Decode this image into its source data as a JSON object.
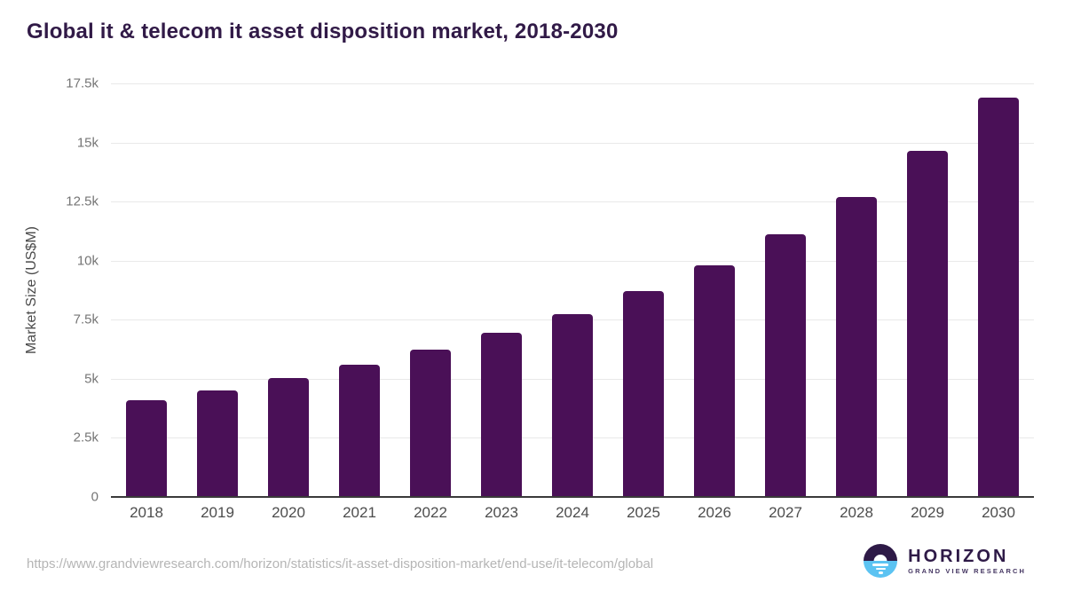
{
  "chart_data": {
    "type": "bar",
    "title": "Global it & telecom it asset disposition market, 2018-2030",
    "categories": [
      "2018",
      "2019",
      "2020",
      "2021",
      "2022",
      "2023",
      "2024",
      "2025",
      "2026",
      "2027",
      "2028",
      "2029",
      "2030"
    ],
    "values": [
      4100,
      4500,
      5050,
      5600,
      6250,
      6950,
      7750,
      8700,
      9800,
      11100,
      12700,
      14650,
      16900
    ],
    "xlabel": "",
    "ylabel": "Market Size (US$M)",
    "ylim": [
      0,
      17500
    ],
    "ytick_values": [
      0,
      2500,
      5000,
      7500,
      10000,
      12500,
      15000,
      17500
    ],
    "ytick_labels": [
      "0",
      "2.5k",
      "5k",
      "7.5k",
      "10k",
      "12.5k",
      "15k",
      "17.5k"
    ],
    "grid": true,
    "legend": "none",
    "bar_color": "#4a1057"
  },
  "colors": {
    "title": "#311a47",
    "bar": "#4a1057",
    "gridline": "#e9e9e9",
    "axis_line": "#3a3a3a",
    "tick_label": "#757575",
    "x_label": "#4d4d4d",
    "url_text": "#b5b5b5",
    "logo_purple": "#2e1a47",
    "logo_blue": "#5cc3f2"
  },
  "footer": {
    "source_url": "https://www.grandviewresearch.com/horizon/statistics/it-asset-disposition-market/end-use/it-telecom/global",
    "logo": {
      "brand": "HORIZON",
      "sub_brand": "GRAND VIEW RESEARCH"
    }
  }
}
